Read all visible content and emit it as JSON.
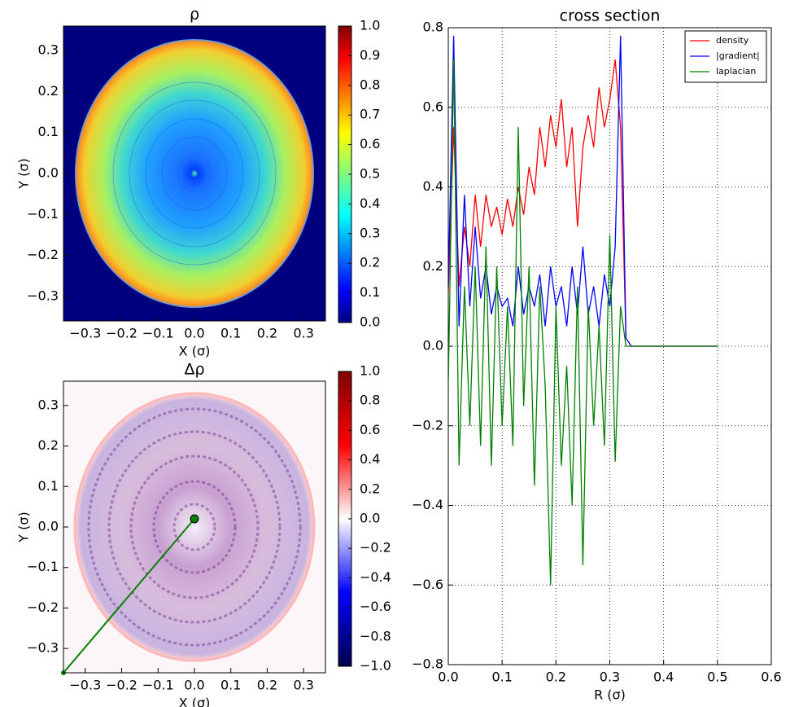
{
  "chart_data": [
    {
      "type": "heatmap",
      "title": "ρ",
      "xlabel": "X (σ)",
      "ylabel": "Y (σ)",
      "xlim": [
        -0.36,
        0.36
      ],
      "ylim": [
        -0.36,
        0.36
      ],
      "xticks": [
        {
          "value": -0.3,
          "label": "−0.3"
        },
        {
          "value": -0.2,
          "label": "−0.2"
        },
        {
          "value": -0.1,
          "label": "−0.1"
        },
        {
          "value": 0,
          "label": "0.0"
        },
        0.1,
        0.2,
        0.3
      ],
      "yticks": [
        {
          "value": -0.3,
          "label": "−0.3"
        },
        {
          "value": -0.2,
          "label": "−0.2"
        },
        {
          "value": -0.1,
          "label": "−0.1"
        },
        {
          "value": 0,
          "label": "0.0"
        },
        0.1,
        0.2,
        0.3
      ],
      "colorbar": {
        "colormap": "jet",
        "lim": [
          0,
          1
        ],
        "ticks": [
          {
            "value": 0,
            "label": "0.0"
          },
          0.1,
          0.2,
          0.3,
          0.4,
          0.5,
          0.6,
          0.7,
          0.8,
          0.9,
          {
            "value": 1,
            "label": "1.0"
          }
        ]
      }
    },
    {
      "type": "heatmap",
      "title": "Δρ",
      "xlabel": "X (σ)",
      "ylabel": "Y (σ)",
      "xlim": [
        -0.36,
        0.36
      ],
      "ylim": [
        -0.36,
        0.36
      ],
      "xticks": [
        {
          "value": -0.3,
          "label": "−0.3"
        },
        {
          "value": -0.2,
          "label": "−0.2"
        },
        {
          "value": -0.1,
          "label": "−0.1"
        },
        {
          "value": 0,
          "label": "0.0"
        },
        0.1,
        0.2,
        0.3
      ],
      "yticks": [
        {
          "value": -0.3,
          "label": "−0.3"
        },
        {
          "value": -0.2,
          "label": "−0.2"
        },
        {
          "value": -0.1,
          "label": "−0.1"
        },
        {
          "value": 0,
          "label": "0.0"
        },
        0.1,
        0.2,
        0.3
      ],
      "colorbar": {
        "colormap": "seismic",
        "lim": [
          -1,
          1
        ],
        "ticks": [
          {
            "value": -1,
            "label": "−1.0"
          },
          {
            "value": -0.8,
            "label": "−0.8"
          },
          {
            "value": -0.6,
            "label": "−0.6"
          },
          {
            "value": -0.4,
            "label": "−0.4"
          },
          {
            "value": -0.2,
            "label": "−0.2"
          },
          {
            "value": 0,
            "label": "0.0"
          },
          0.2,
          0.4,
          0.6,
          0.8,
          {
            "value": 1,
            "label": "1.0"
          }
        ]
      }
    },
    {
      "type": "line",
      "title": "cross section",
      "xlabel": "R (σ)",
      "grid": true,
      "legend": "upper right",
      "xlim": [
        0,
        0.6
      ],
      "ylim": [
        -0.8,
        0.8
      ],
      "xticks": [
        {
          "value": 0,
          "label": "0.0"
        },
        0.1,
        0.2,
        0.3,
        0.4,
        0.5,
        0.6
      ],
      "yticks": [
        {
          "value": -0.8,
          "label": "−0.8"
        },
        {
          "value": -0.6,
          "label": "−0.6"
        },
        {
          "value": -0.4,
          "label": "−0.4"
        },
        {
          "value": -0.2,
          "label": "−0.2"
        },
        {
          "value": 0,
          "label": "0.0"
        },
        0.2,
        0.4,
        0.6,
        0.8
      ],
      "x": [
        0,
        0.01,
        0.02,
        0.03,
        0.04,
        0.05,
        0.06,
        0.07,
        0.08,
        0.09,
        0.1,
        0.11,
        0.12,
        0.13,
        0.14,
        0.15,
        0.16,
        0.17,
        0.18,
        0.19,
        0.2,
        0.21,
        0.22,
        0.23,
        0.24,
        0.25,
        0.26,
        0.27,
        0.28,
        0.29,
        0.3,
        0.31,
        0.32,
        0.33,
        0.34,
        0.35,
        0.36,
        0.37,
        0.38,
        0.39,
        0.4,
        0.41,
        0.42,
        0.43,
        0.44,
        0.45,
        0.46,
        0.47,
        0.48,
        0.49,
        0.5
      ],
      "series": [
        {
          "name": "density",
          "color": "#ff0000",
          "values": [
            0.13,
            0.55,
            0.15,
            0.3,
            0.2,
            0.38,
            0.25,
            0.38,
            0.3,
            0.35,
            0.28,
            0.37,
            0.3,
            0.4,
            0.33,
            0.45,
            0.38,
            0.55,
            0.45,
            0.58,
            0.5,
            0.62,
            0.45,
            0.55,
            0.3,
            0.5,
            0.58,
            0.5,
            0.65,
            0.55,
            0.62,
            0.72,
            0.55,
            0.02,
            0,
            0,
            0,
            0,
            0,
            0,
            0,
            0,
            0,
            0,
            0,
            0,
            0,
            0,
            0,
            0,
            0
          ]
        },
        {
          "name": "|gradient|",
          "color": "#0000ff",
          "values": [
            0.15,
            0.78,
            0.05,
            0.38,
            0.1,
            0.3,
            0.12,
            0.2,
            0.08,
            0.15,
            0.1,
            0.12,
            0.05,
            0.2,
            0.08,
            0.15,
            0.1,
            0.18,
            0.05,
            0.2,
            0.1,
            0.15,
            0.05,
            0.2,
            0.08,
            0.25,
            0.08,
            0.15,
            0.05,
            0.18,
            0.1,
            0.25,
            0.78,
            0.02,
            0,
            0,
            0,
            0,
            0,
            0,
            0,
            0,
            0,
            0,
            0,
            0,
            0,
            0,
            0,
            0,
            0
          ]
        },
        {
          "name": "laplacian",
          "color": "#008000",
          "values": [
            -0.1,
            0.72,
            -0.3,
            0.15,
            -0.2,
            0.2,
            -0.25,
            0.25,
            -0.3,
            0.2,
            -0.2,
            0.1,
            -0.25,
            0.55,
            -0.15,
            0.2,
            -0.35,
            0.15,
            -0.1,
            -0.6,
            0.1,
            -0.3,
            -0.05,
            -0.4,
            0.15,
            -0.55,
            0.1,
            -0.2,
            0.05,
            -0.25,
            0.28,
            -0.29,
            0.1,
            0,
            0,
            0,
            0,
            0,
            0,
            0,
            0,
            0,
            0,
            0,
            0,
            0,
            0,
            0,
            0,
            0,
            0
          ]
        }
      ]
    }
  ]
}
